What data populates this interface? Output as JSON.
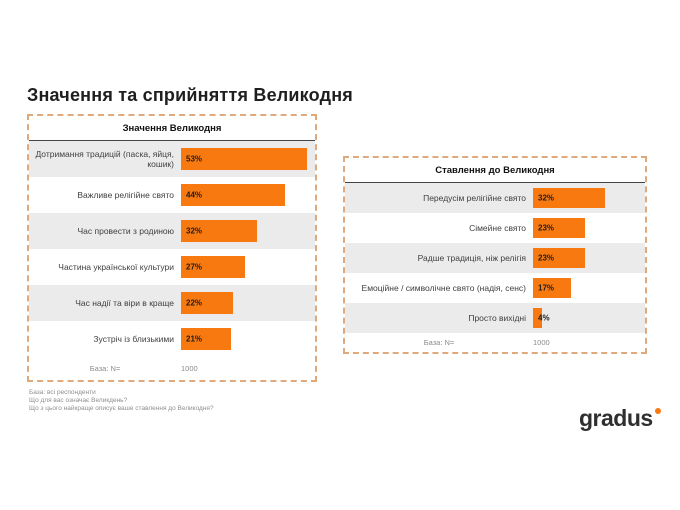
{
  "page": {
    "title": "Значення та сприйняття Великодня",
    "logo_text": "gradus",
    "footnotes": [
      "База: всі респонденти",
      "Що для вас означає Великдень?",
      "Що з цього найкраще описує ваше ставлення до Великодня?"
    ]
  },
  "colors": {
    "bar_orange": "#f7790f",
    "panel_border_orange": "#dfa97c",
    "row_gray": "#ebebeb"
  },
  "chart_data": [
    {
      "type": "bar",
      "orientation": "horizontal",
      "title": "Значення Великодня",
      "categories": [
        "Дотримання традицій (паска, яйця, кошик)",
        "Важливе релігійне свято",
        "Час провести з родиною",
        "Частина української культури",
        "Час надії та віри в краще",
        "Зустріч із близькими"
      ],
      "values": [
        53,
        44,
        32,
        27,
        22,
        21
      ],
      "value_labels": [
        "53%",
        "44%",
        "32%",
        "27%",
        "22%",
        "21%"
      ],
      "xlim": [
        0,
        54
      ],
      "grid": false,
      "legend": false,
      "base_label": "База: N=",
      "base_value": "1000"
    },
    {
      "type": "bar",
      "orientation": "horizontal",
      "title": "Ставлення до Великодня",
      "categories": [
        "Передусім релігійне свято",
        "Сімейне свято",
        "Радше традиція, ніж релігія",
        "Емоційне / символічне свято (надія, сенс)",
        "Просто вихідні"
      ],
      "values": [
        32,
        23,
        23,
        17,
        4
      ],
      "value_labels": [
        "32%",
        "23%",
        "23%",
        "17%",
        "4%"
      ],
      "xlim": [
        0,
        47
      ],
      "grid": false,
      "legend": false,
      "base_label": "База: N=",
      "base_value": "1000"
    }
  ]
}
